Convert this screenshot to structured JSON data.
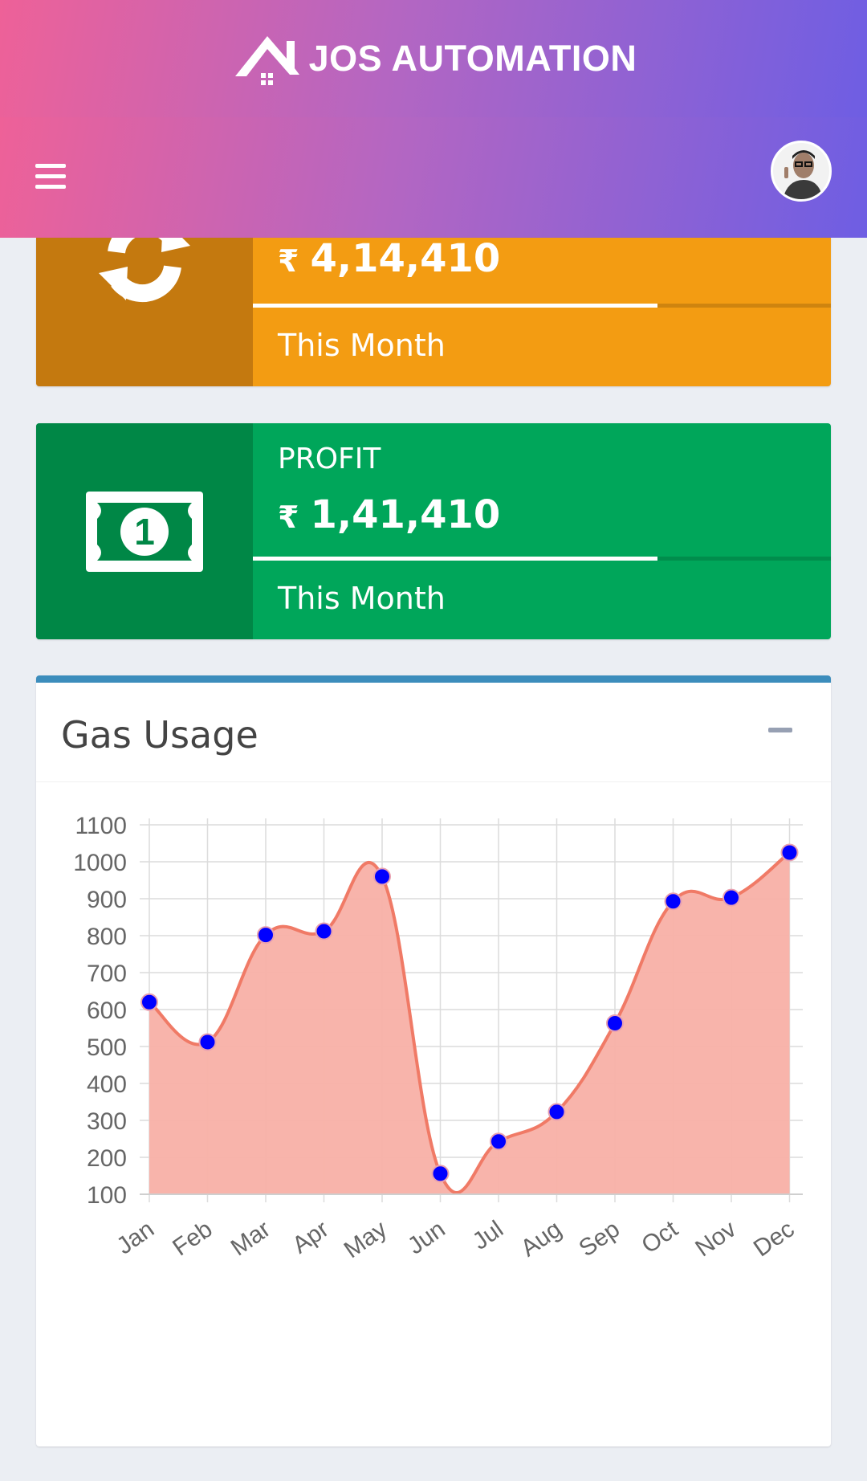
{
  "header": {
    "brand": "JOS AUTOMATION"
  },
  "cards": [
    {
      "value": "4,14,410",
      "currency_symbol": "₹",
      "description": "This Month",
      "progress": 0.7,
      "color": "#f39c12",
      "icon": "refresh-icon"
    },
    {
      "label": "PROFIT",
      "value": "1,41,410",
      "currency_symbol": "₹",
      "description": "This Month",
      "progress": 0.7,
      "color": "#00a65a",
      "icon": "money-bill-icon"
    }
  ],
  "chart_panel": {
    "title": "Gas Usage",
    "collapse_icon": "minus-icon",
    "accent": "#3c8dbc"
  },
  "chart_data": {
    "type": "area",
    "categories": [
      "Jan",
      "Feb",
      "Mar",
      "Apr",
      "May",
      "Jun",
      "Jul",
      "Aug",
      "Sep",
      "Oct",
      "Nov",
      "Dec"
    ],
    "values": [
      620,
      512,
      802,
      812,
      960,
      156,
      243,
      323,
      563,
      893,
      903,
      1025
    ],
    "ylim": [
      100,
      1100
    ],
    "yticks": [
      100,
      200,
      300,
      400,
      500,
      600,
      700,
      800,
      900,
      1000,
      1100
    ],
    "grid": true,
    "fill_color": "#f8b0a6",
    "line_color": "#f07a66",
    "point_color": "#0000ff"
  }
}
